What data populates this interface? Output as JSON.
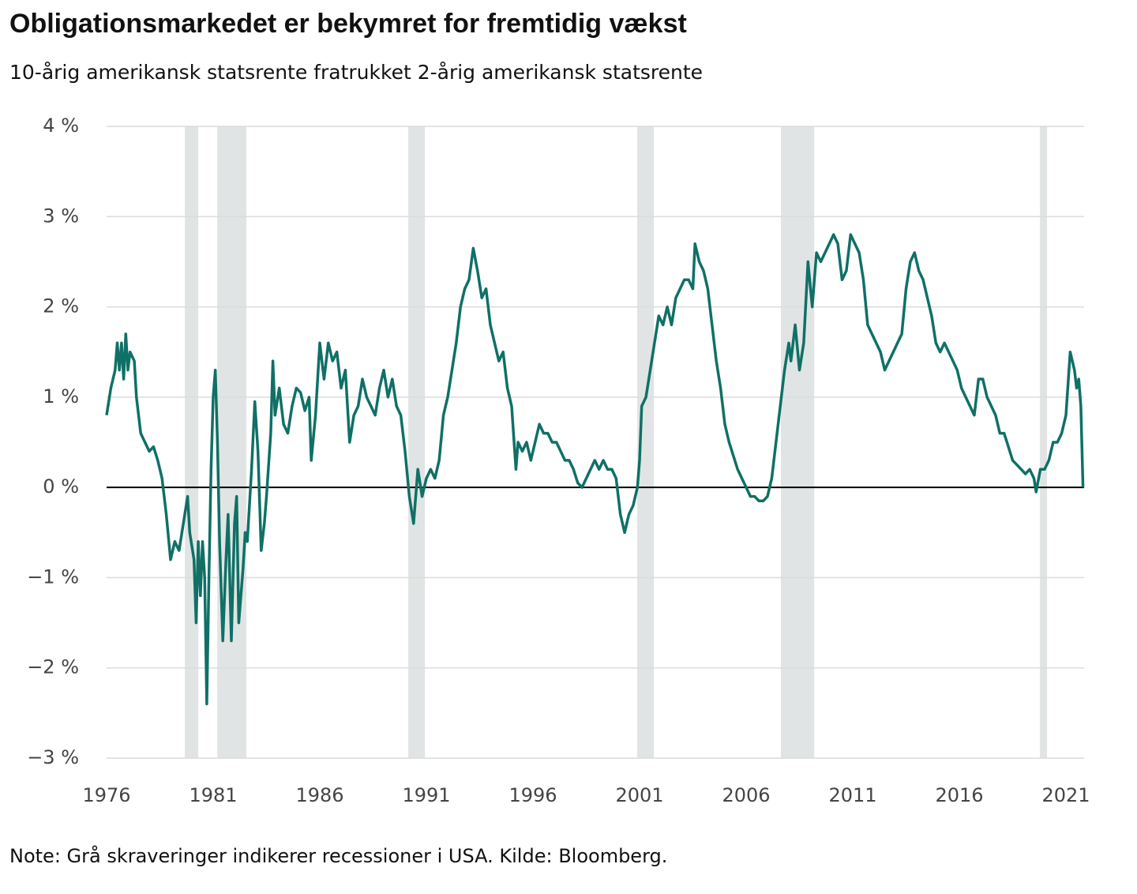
{
  "chart_data": {
    "type": "line",
    "title": "Obligationsmarkedet er bekymret for fremtidig vækst",
    "subtitle": "10-årig amerikansk statsrente fratrukket 2-årig amerikansk statsrente",
    "note": "Note: Grå skraveringer indikerer recessioner i USA. Kilde: Bloomberg.",
    "xlim": [
      1976,
      2021.85
    ],
    "xticks": [
      1976,
      1981,
      1986,
      1991,
      1996,
      2001,
      2006,
      2011,
      2016,
      2021
    ],
    "ylim": [
      -3,
      4
    ],
    "yticks": [
      {
        "value": -3,
        "label": "−3 %"
      },
      {
        "value": -2,
        "label": "−2 %"
      },
      {
        "value": -1,
        "label": "−1 %"
      },
      {
        "value": 0,
        "label": "0 %"
      },
      {
        "value": 1,
        "label": "1 %"
      },
      {
        "value": 2,
        "label": "2 %"
      },
      {
        "value": 3,
        "label": "3 %"
      },
      {
        "value": 4,
        "label": "4 %"
      }
    ],
    "grid": true,
    "recession_color": "#e1e4e4",
    "recessions": [
      [
        1979.67,
        1980.3
      ],
      [
        1981.19,
        1982.56
      ],
      [
        1990.15,
        1990.93
      ],
      [
        2000.89,
        2001.67
      ],
      [
        2007.63,
        2009.19
      ],
      [
        2019.78,
        2020.11
      ]
    ],
    "series": [
      {
        "color": "#0f7066",
        "x": [
          1976.0,
          1976.2,
          1976.4,
          1976.5,
          1976.6,
          1976.7,
          1976.8,
          1976.9,
          1977.0,
          1977.1,
          1977.3,
          1977.4,
          1977.6,
          1977.8,
          1978.0,
          1978.2,
          1978.4,
          1978.6,
          1978.8,
          1979.0,
          1979.2,
          1979.4,
          1979.6,
          1979.8,
          1979.9,
          1980.1,
          1980.2,
          1980.3,
          1980.4,
          1980.5,
          1980.6,
          1980.7,
          1980.8,
          1980.9,
          1981.0,
          1981.1,
          1981.2,
          1981.3,
          1981.45,
          1981.6,
          1981.7,
          1981.85,
          1982.0,
          1982.1,
          1982.2,
          1982.4,
          1982.5,
          1982.6,
          1982.8,
          1982.95,
          1983.1,
          1983.25,
          1983.4,
          1983.5,
          1983.7,
          1983.8,
          1983.9,
          1984.1,
          1984.3,
          1984.5,
          1984.7,
          1984.9,
          1985.1,
          1985.3,
          1985.5,
          1985.6,
          1985.8,
          1986.0,
          1986.2,
          1986.4,
          1986.6,
          1986.8,
          1987.0,
          1987.2,
          1987.4,
          1987.6,
          1987.8,
          1988.0,
          1988.2,
          1988.4,
          1988.6,
          1988.8,
          1989.0,
          1989.2,
          1989.4,
          1989.6,
          1989.8,
          1990.0,
          1990.2,
          1990.4,
          1990.6,
          1990.8,
          1991.0,
          1991.2,
          1991.4,
          1991.6,
          1991.8,
          1992.0,
          1992.2,
          1992.4,
          1992.6,
          1992.8,
          1993.0,
          1993.2,
          1993.4,
          1993.6,
          1993.8,
          1994.0,
          1994.2,
          1994.4,
          1994.6,
          1994.8,
          1995.0,
          1995.2,
          1995.3,
          1995.5,
          1995.7,
          1995.9,
          1996.1,
          1996.3,
          1996.5,
          1996.7,
          1996.9,
          1997.1,
          1997.3,
          1997.5,
          1997.7,
          1997.9,
          1998.1,
          1998.3,
          1998.5,
          1998.7,
          1998.9,
          1999.1,
          1999.3,
          1999.5,
          1999.7,
          1999.9,
          2000.1,
          2000.3,
          2000.5,
          2000.7,
          2000.9,
          2001.0,
          2001.1,
          2001.3,
          2001.5,
          2001.7,
          2001.9,
          2002.1,
          2002.3,
          2002.5,
          2002.7,
          2002.9,
          2003.1,
          2003.3,
          2003.5,
          2003.6,
          2003.8,
          2004.0,
          2004.2,
          2004.4,
          2004.6,
          2004.8,
          2005.0,
          2005.2,
          2005.4,
          2005.6,
          2005.8,
          2006.0,
          2006.2,
          2006.4,
          2006.6,
          2006.8,
          2007.0,
          2007.2,
          2007.4,
          2007.6,
          2007.8,
          2008.0,
          2008.1,
          2008.3,
          2008.5,
          2008.7,
          2008.9,
          2009.1,
          2009.3,
          2009.5,
          2009.7,
          2009.9,
          2010.1,
          2010.3,
          2010.5,
          2010.7,
          2010.9,
          2011.1,
          2011.3,
          2011.5,
          2011.7,
          2011.9,
          2012.1,
          2012.3,
          2012.5,
          2012.7,
          2012.9,
          2013.1,
          2013.3,
          2013.5,
          2013.7,
          2013.9,
          2014.1,
          2014.3,
          2014.5,
          2014.7,
          2014.9,
          2015.1,
          2015.3,
          2015.5,
          2015.7,
          2015.9,
          2016.1,
          2016.3,
          2016.5,
          2016.7,
          2016.9,
          2017.1,
          2017.3,
          2017.5,
          2017.7,
          2017.9,
          2018.1,
          2018.3,
          2018.5,
          2018.7,
          2018.9,
          2019.1,
          2019.3,
          2019.5,
          2019.6,
          2019.8,
          2020.0,
          2020.2,
          2020.4,
          2020.6,
          2020.8,
          2021.0,
          2021.2,
          2021.4,
          2021.5,
          2021.6,
          2021.7,
          2021.8
        ],
        "values": [
          0.8,
          1.1,
          1.3,
          1.6,
          1.3,
          1.6,
          1.2,
          1.7,
          1.3,
          1.5,
          1.4,
          1.0,
          0.6,
          0.5,
          0.4,
          0.45,
          0.3,
          0.1,
          -0.3,
          -0.8,
          -0.6,
          -0.7,
          -0.4,
          -0.1,
          -0.5,
          -0.8,
          -1.5,
          -0.6,
          -1.2,
          -0.6,
          -1.0,
          -2.4,
          -1.0,
          0.2,
          1.0,
          1.3,
          0.5,
          -0.6,
          -1.7,
          -0.8,
          -0.3,
          -1.7,
          -0.4,
          -0.1,
          -1.5,
          -0.9,
          -0.5,
          -0.6,
          0.2,
          0.95,
          0.4,
          -0.7,
          -0.4,
          -0.1,
          0.6,
          1.4,
          0.8,
          1.1,
          0.7,
          0.6,
          0.9,
          1.1,
          1.05,
          0.85,
          1.0,
          0.3,
          0.8,
          1.6,
          1.2,
          1.6,
          1.4,
          1.5,
          1.1,
          1.3,
          0.5,
          0.8,
          0.9,
          1.2,
          1.0,
          0.9,
          0.8,
          1.1,
          1.3,
          1.0,
          1.2,
          0.9,
          0.8,
          0.4,
          -0.1,
          -0.4,
          0.2,
          -0.1,
          0.1,
          0.2,
          0.1,
          0.3,
          0.8,
          1.0,
          1.3,
          1.6,
          2.0,
          2.2,
          2.3,
          2.65,
          2.4,
          2.1,
          2.2,
          1.8,
          1.6,
          1.4,
          1.5,
          1.1,
          0.9,
          0.2,
          0.5,
          0.4,
          0.5,
          0.3,
          0.5,
          0.7,
          0.6,
          0.6,
          0.5,
          0.5,
          0.4,
          0.3,
          0.3,
          0.2,
          0.05,
          0.0,
          0.1,
          0.2,
          0.3,
          0.2,
          0.3,
          0.2,
          0.2,
          0.1,
          -0.3,
          -0.5,
          -0.3,
          -0.2,
          0.0,
          0.3,
          0.9,
          1.0,
          1.3,
          1.6,
          1.9,
          1.8,
          2.0,
          1.8,
          2.1,
          2.2,
          2.3,
          2.3,
          2.2,
          2.7,
          2.5,
          2.4,
          2.2,
          1.8,
          1.4,
          1.1,
          0.7,
          0.5,
          0.35,
          0.2,
          0.1,
          0.0,
          -0.1,
          -0.1,
          -0.15,
          -0.15,
          -0.1,
          0.1,
          0.5,
          0.9,
          1.3,
          1.6,
          1.4,
          1.8,
          1.3,
          1.6,
          2.5,
          2.0,
          2.6,
          2.5,
          2.6,
          2.7,
          2.8,
          2.7,
          2.3,
          2.4,
          2.8,
          2.7,
          2.6,
          2.3,
          1.8,
          1.7,
          1.6,
          1.5,
          1.3,
          1.4,
          1.5,
          1.6,
          1.7,
          2.2,
          2.5,
          2.6,
          2.4,
          2.3,
          2.1,
          1.9,
          1.6,
          1.5,
          1.6,
          1.5,
          1.4,
          1.3,
          1.1,
          1.0,
          0.9,
          0.8,
          1.2,
          1.2,
          1.0,
          0.9,
          0.8,
          0.6,
          0.6,
          0.45,
          0.3,
          0.25,
          0.2,
          0.15,
          0.2,
          0.1,
          -0.05,
          0.2,
          0.2,
          0.3,
          0.5,
          0.5,
          0.6,
          0.8,
          1.5,
          1.3,
          1.1,
          1.2,
          0.9,
          0.0
        ]
      }
    ]
  }
}
